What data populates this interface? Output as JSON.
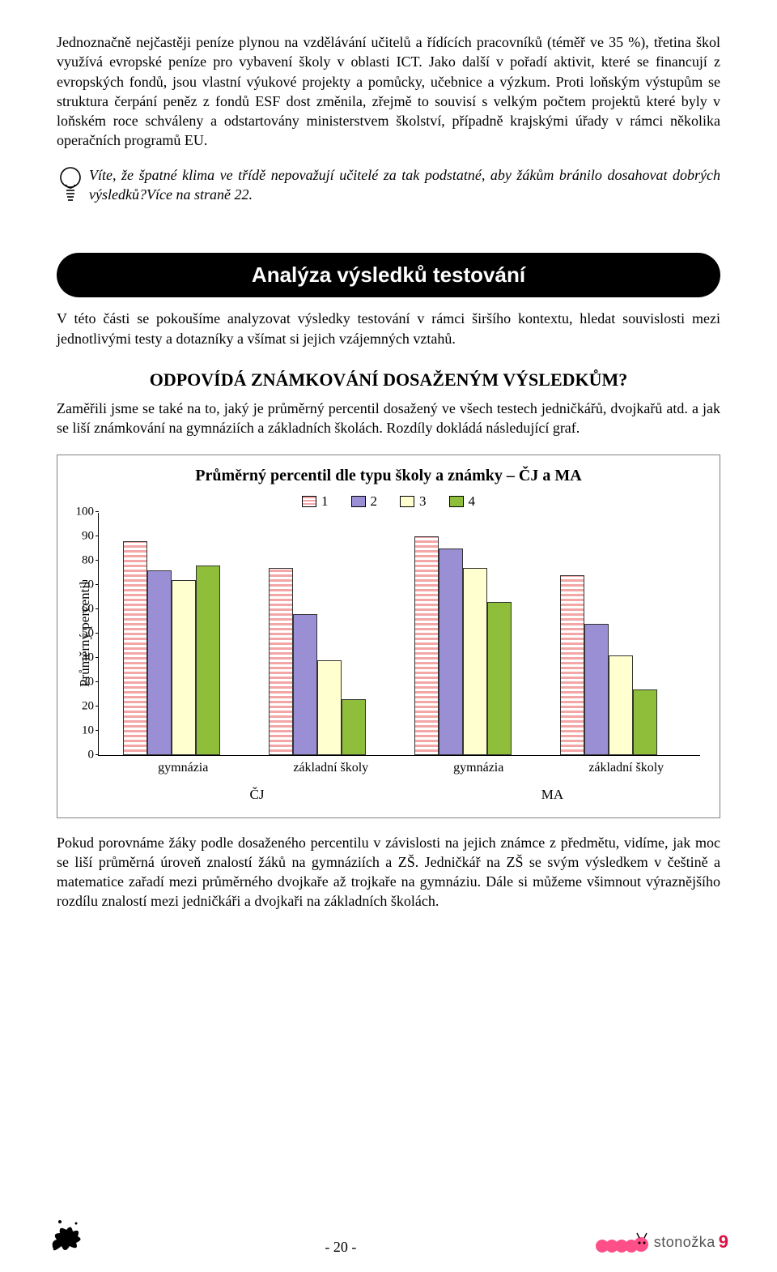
{
  "paragraphs": {
    "p1": "Jednoznačně nejčastěji peníze plynou na vzdělávání učitelů a řídících pracovníků (téměř ve 35 %), třetina škol využívá evropské peníze pro vybavení školy v oblasti ICT. Jako další v pořadí aktivit, které se financují z evropských fondů, jsou vlastní výukové projekty a pomůcky, učebnice a výzkum. Proti loňským výstupům se struktura čerpání peněz z fondů ESF dost změnila, zřejmě to souvisí s velkým počtem projektů které byly v loňském roce schváleny a odstartovány ministerstvem školství, případně krajskými úřady v rámci několika operačních programů EU.",
    "tip": "Víte, že špatné klima ve třídě nepovažují učitelé za tak podstatné, aby žákům bránilo dosahovat dobrých výsledků?Více na straně 22.",
    "p2": "V této části se pokoušíme analyzovat výsledky testování v rámci širšího kontextu, hledat souvislosti mezi jednotlivými testy a dotazníky a všímat si jejich vzájemných vztahů.",
    "p3": "Zaměřili jsme se také na to, jaký je průměrný percentil dosažený ve všech testech jedničkářů, dvojkařů atd. a jak se liší známkování na gymnáziích a základních školách. Rozdíly dokládá následující graf.",
    "p4": "Pokud porovnáme žáky podle dosaženého percentilu v závislosti na jejich známce z předmětu, vidíme, jak moc se liší průměrná úroveň znalostí žáků na gymnáziích a ZŠ. Jedničkář na ZŠ se svým výsledkem v češtině a matematice zařadí mezi průměrného dvojkaře až trojkaře na gymnáziu. Dále si můžeme všimnout výraznějšího rozdílu znalostí mezi jedničkáři a dvojkaři na základních školách."
  },
  "headings": {
    "banner": "Analýza výsledků testování",
    "sub": "ODPOVÍDÁ ZNÁMKOVÁNÍ DOSAŽENÝM VÝSLEDKŮM?"
  },
  "chart": {
    "title": "Průměrný percentil dle typu školy a známky – ČJ a MA",
    "ylabel": "Průměrný percentil",
    "ylim": [
      0,
      100
    ],
    "ytick_step": 10,
    "legend_labels": [
      "1",
      "2",
      "3",
      "4"
    ],
    "series_fills": [
      "#f2a6a6",
      "#9a8fd4",
      "#ffffd0",
      "#8fbf3a"
    ],
    "series_patterns": [
      "hstripe",
      "solid",
      "solid",
      "solid"
    ],
    "group_labels_row1": [
      "gymnázia",
      "základní školy",
      "gymnázia",
      "základní školy"
    ],
    "group_labels_row2": [
      "ČJ",
      "MA"
    ],
    "groups": [
      [
        88,
        76,
        72,
        78
      ],
      [
        77,
        58,
        39,
        23
      ],
      [
        90,
        85,
        77,
        63
      ],
      [
        74,
        54,
        41,
        27
      ]
    ]
  },
  "footer": {
    "page": "- 20 -",
    "brand_text": "stonožka",
    "brand_num": "9"
  },
  "colors": {
    "banner_bg": "#000000",
    "banner_fg": "#ffffff",
    "caterpillar": "#ff4f88"
  }
}
